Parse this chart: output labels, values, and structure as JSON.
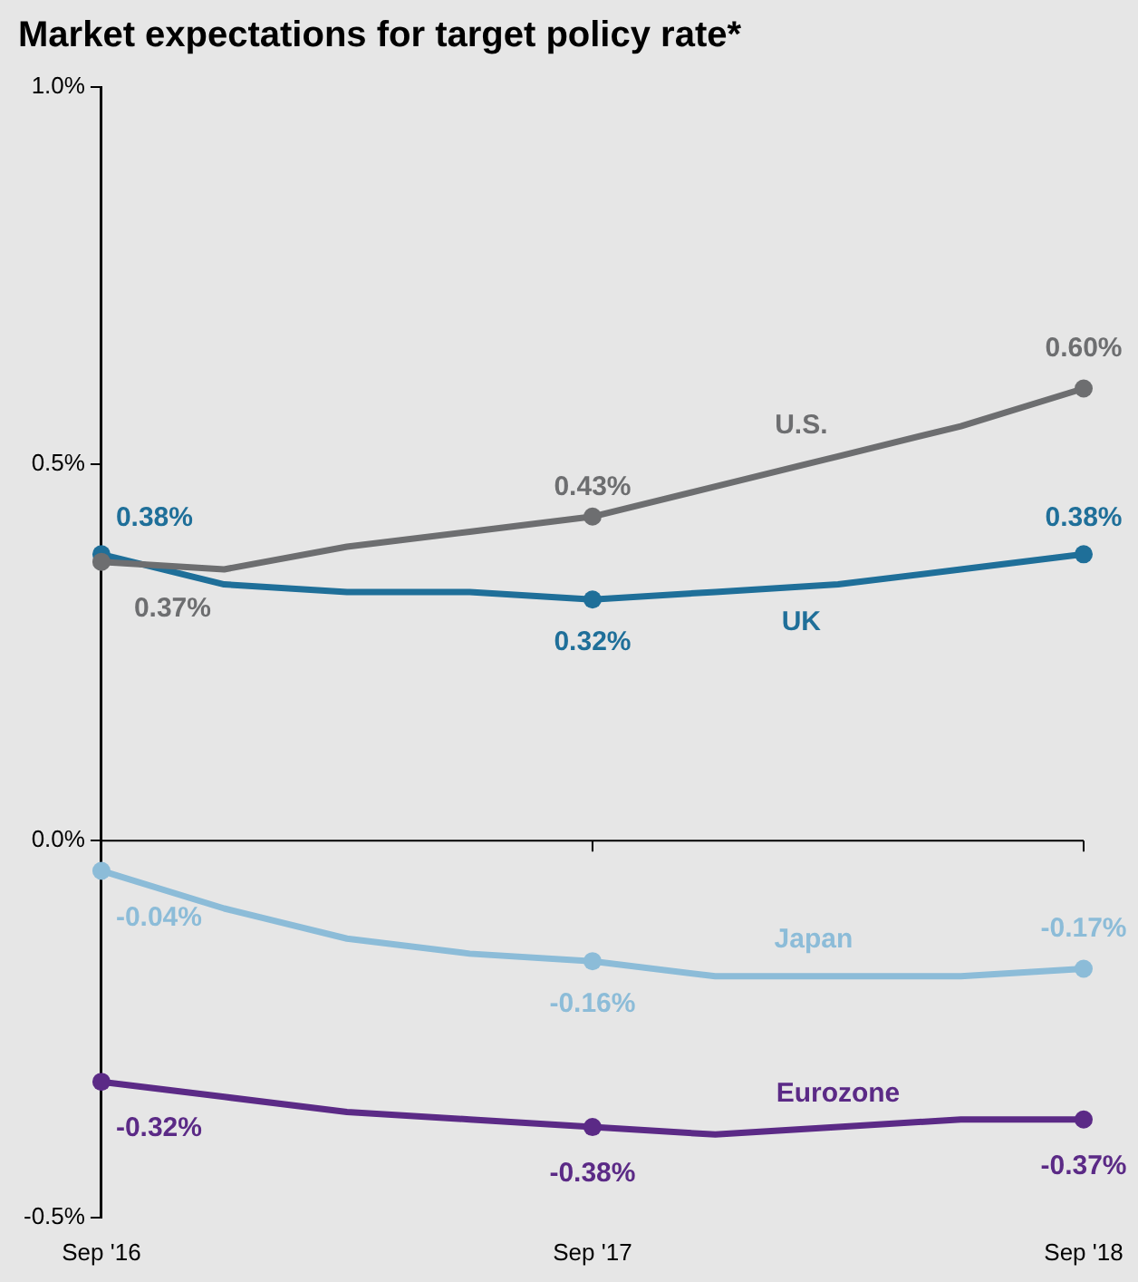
{
  "chart_data": {
    "type": "line",
    "title": "Market expectations for target policy rate*",
    "categories": [
      "Sep '16",
      null,
      null,
      null,
      "Sep '17",
      null,
      null,
      null,
      "Sep '18"
    ],
    "series": [
      {
        "name": "U.S.",
        "color": "#6d6e70",
        "values": [
          0.37,
          0.36,
          0.39,
          0.41,
          0.43,
          0.47,
          0.51,
          0.55,
          0.6
        ],
        "value_labels": [
          "0.37%",
          null,
          null,
          null,
          "0.43%",
          null,
          null,
          null,
          "0.60%"
        ]
      },
      {
        "name": "UK",
        "color": "#1f6f99",
        "values": [
          0.38,
          0.34,
          0.33,
          0.33,
          0.32,
          0.33,
          0.34,
          0.36,
          0.38
        ],
        "value_labels": [
          "0.38%",
          null,
          null,
          null,
          "0.32%",
          null,
          null,
          null,
          "0.38%"
        ]
      },
      {
        "name": "Japan",
        "color": "#8cbcd8",
        "values": [
          -0.04,
          -0.09,
          -0.13,
          -0.15,
          -0.16,
          -0.18,
          -0.18,
          -0.18,
          -0.17
        ],
        "value_labels": [
          "-0.04%",
          null,
          null,
          null,
          "-0.16%",
          null,
          null,
          null,
          "-0.17%"
        ]
      },
      {
        "name": "Eurozone",
        "color": "#5b2a86",
        "values": [
          -0.32,
          -0.34,
          -0.36,
          -0.37,
          -0.38,
          -0.39,
          -0.38,
          -0.37,
          -0.37
        ],
        "value_labels": [
          "-0.32%",
          null,
          null,
          null,
          "-0.38%",
          null,
          null,
          null,
          "-0.37%"
        ]
      }
    ],
    "ylim": [
      -0.5,
      1
    ],
    "yticks": [
      {
        "value": -0.5,
        "label": "-0.5%"
      },
      {
        "value": 0,
        "label": "0.0%"
      },
      {
        "value": 0.5,
        "label": "0.5%"
      },
      {
        "value": 1,
        "label": "1.0%"
      }
    ],
    "ref_lines": [
      {
        "axis": "y",
        "value": 0,
        "color": "#000000"
      }
    ],
    "grid": false,
    "legend": false,
    "line_style": "solid"
  }
}
